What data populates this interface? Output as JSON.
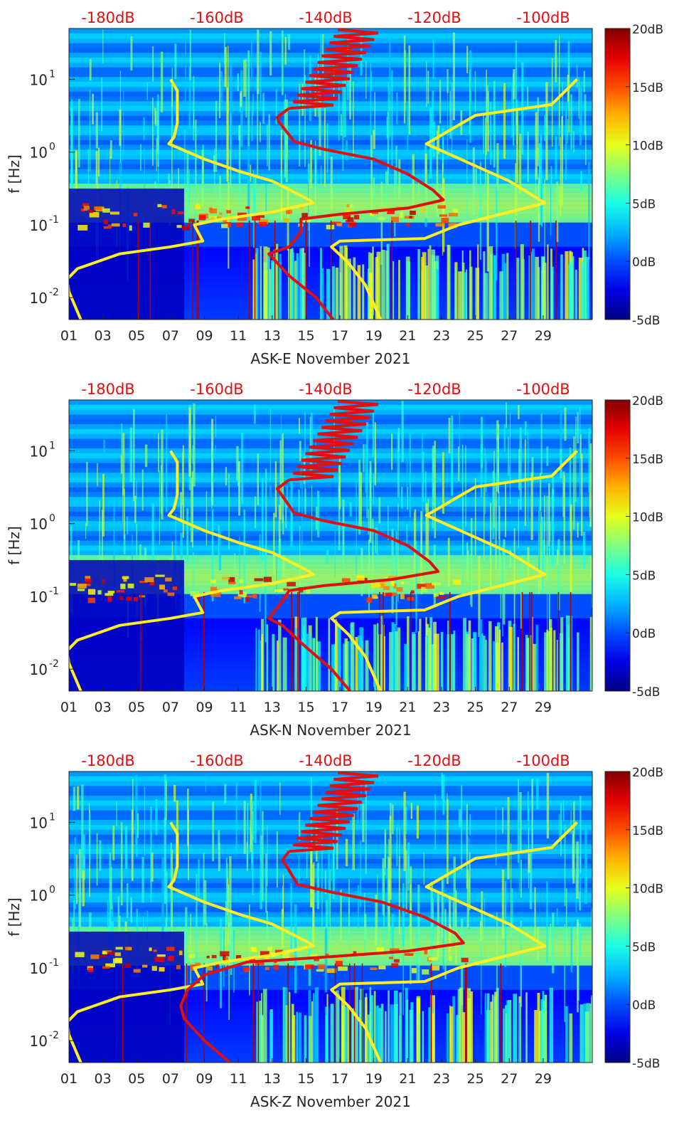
{
  "chart_data": [
    {
      "type": "heatmap",
      "station": "ASK-E",
      "xlabel": "ASK-E November 2021",
      "ylabel": "f [Hz]",
      "x_ticks": [
        "01",
        "03",
        "05",
        "07",
        "09",
        "11",
        "13",
        "15",
        "17",
        "19",
        "21",
        "23",
        "25",
        "27",
        "29"
      ],
      "y_range_hz": [
        0.005,
        50
      ],
      "y_ticks": [
        {
          "value": 0.01,
          "base": "10",
          "exp": "-2"
        },
        {
          "value": 0.1,
          "base": "10",
          "exp": "-1"
        },
        {
          "value": 1,
          "base": "10",
          "exp": "0"
        },
        {
          "value": 10,
          "base": "10",
          "exp": "1"
        }
      ],
      "top_axis_labels": [
        "-180dB",
        "-160dB",
        "-140dB",
        "-120dB",
        "-100dB"
      ],
      "colorbar": {
        "min_db": -5,
        "max_db": 20,
        "tick_labels": [
          "20dB",
          "15dB",
          "10dB",
          "5dB",
          "0dB",
          "-5dB"
        ]
      },
      "noise_models": {
        "low_curve": [
          [
            7,
            10
          ],
          [
            7.4,
            7
          ],
          [
            7.4,
            2.5
          ],
          [
            7.2,
            1.6
          ],
          [
            6.9,
            1.3
          ],
          [
            9,
            0.8
          ],
          [
            11,
            0.55
          ],
          [
            13,
            0.4
          ],
          [
            15.2,
            0.22
          ],
          [
            15.4,
            0.2
          ],
          [
            13,
            0.15
          ],
          [
            10,
            0.12
          ],
          [
            8.4,
            0.1
          ],
          [
            8.9,
            0.06
          ],
          [
            7,
            0.05
          ],
          [
            4,
            0.04
          ],
          [
            1.5,
            0.025
          ],
          [
            0.9,
            0.018
          ],
          [
            1,
            0.012
          ],
          [
            1.7,
            0.005
          ]
        ],
        "high_curve": [
          [
            31,
            10
          ],
          [
            29.5,
            4.5
          ],
          [
            25,
            3.2
          ],
          [
            22.1,
            1.3
          ],
          [
            27,
            0.4
          ],
          [
            29.1,
            0.2
          ],
          [
            26.5,
            0.14
          ],
          [
            24,
            0.1
          ],
          [
            22,
            0.065
          ],
          [
            17,
            0.06
          ],
          [
            16.5,
            0.05
          ],
          [
            17.5,
            0.03
          ],
          [
            18.5,
            0.015
          ],
          [
            19.4,
            0.005
          ]
        ],
        "psd_curve": [
          [
            14,
            4
          ],
          [
            13.3,
            3
          ],
          [
            13.4,
            2.6
          ],
          [
            14.3,
            1.4
          ],
          [
            16,
            1.1
          ],
          [
            19,
            0.8
          ],
          [
            21,
            0.5
          ],
          [
            22.5,
            0.3
          ],
          [
            23.1,
            0.22
          ],
          [
            21,
            0.17
          ],
          [
            17,
            0.14
          ],
          [
            14.7,
            0.12
          ],
          [
            14.7,
            0.08
          ],
          [
            14,
            0.05
          ],
          [
            12.8,
            0.04
          ],
          [
            14,
            0.02
          ],
          [
            15.6,
            0.01
          ],
          [
            16.6,
            0.005
          ]
        ]
      }
    },
    {
      "type": "heatmap",
      "station": "ASK-N",
      "xlabel": "ASK-N November 2021",
      "ylabel": "f [Hz]",
      "x_ticks": [
        "01",
        "03",
        "05",
        "07",
        "09",
        "11",
        "13",
        "15",
        "17",
        "19",
        "21",
        "23",
        "25",
        "27",
        "29"
      ],
      "y_range_hz": [
        0.005,
        50
      ],
      "y_ticks": [
        {
          "value": 0.01,
          "base": "10",
          "exp": "-2"
        },
        {
          "value": 0.1,
          "base": "10",
          "exp": "-1"
        },
        {
          "value": 1,
          "base": "10",
          "exp": "0"
        },
        {
          "value": 10,
          "base": "10",
          "exp": "1"
        }
      ],
      "top_axis_labels": [
        "-180dB",
        "-160dB",
        "-140dB",
        "-120dB",
        "-100dB"
      ],
      "colorbar": {
        "min_db": -5,
        "max_db": 20,
        "tick_labels": [
          "20dB",
          "15dB",
          "10dB",
          "5dB",
          "0dB",
          "-5dB"
        ]
      },
      "noise_models": {
        "low_curve": [
          [
            7,
            10
          ],
          [
            7.4,
            7
          ],
          [
            7.4,
            2.5
          ],
          [
            7.2,
            1.6
          ],
          [
            6.9,
            1.3
          ],
          [
            9,
            0.8
          ],
          [
            11,
            0.55
          ],
          [
            13,
            0.4
          ],
          [
            15.2,
            0.22
          ],
          [
            15.4,
            0.2
          ],
          [
            13,
            0.15
          ],
          [
            10,
            0.12
          ],
          [
            8.4,
            0.1
          ],
          [
            8.9,
            0.06
          ],
          [
            7,
            0.05
          ],
          [
            4,
            0.04
          ],
          [
            1.5,
            0.025
          ],
          [
            0.9,
            0.018
          ],
          [
            1,
            0.012
          ],
          [
            1.7,
            0.005
          ]
        ],
        "high_curve": [
          [
            31,
            10
          ],
          [
            29.5,
            4.5
          ],
          [
            25,
            3.2
          ],
          [
            22.1,
            1.3
          ],
          [
            27,
            0.4
          ],
          [
            29.1,
            0.2
          ],
          [
            26.5,
            0.14
          ],
          [
            24,
            0.1
          ],
          [
            22,
            0.065
          ],
          [
            17,
            0.06
          ],
          [
            16.5,
            0.05
          ],
          [
            17.5,
            0.03
          ],
          [
            18.5,
            0.015
          ],
          [
            19.4,
            0.005
          ]
        ],
        "psd_curve": [
          [
            14,
            4
          ],
          [
            13.3,
            3
          ],
          [
            13.5,
            2.6
          ],
          [
            14.3,
            1.4
          ],
          [
            16,
            1.1
          ],
          [
            19,
            0.8
          ],
          [
            21,
            0.5
          ],
          [
            22.3,
            0.3
          ],
          [
            22.8,
            0.22
          ],
          [
            20,
            0.17
          ],
          [
            16,
            0.14
          ],
          [
            14,
            0.12
          ],
          [
            13.5,
            0.08
          ],
          [
            12.8,
            0.05
          ],
          [
            13.6,
            0.04
          ],
          [
            15,
            0.02
          ],
          [
            16.5,
            0.01
          ],
          [
            17.6,
            0.005
          ]
        ]
      }
    },
    {
      "type": "heatmap",
      "station": "ASK-Z",
      "xlabel": "ASK-Z November 2021",
      "ylabel": "f [Hz]",
      "x_ticks": [
        "01",
        "03",
        "05",
        "07",
        "09",
        "11",
        "13",
        "15",
        "17",
        "19",
        "21",
        "23",
        "25",
        "27",
        "29"
      ],
      "y_range_hz": [
        0.005,
        50
      ],
      "y_ticks": [
        {
          "value": 0.01,
          "base": "10",
          "exp": "-2"
        },
        {
          "value": 0.1,
          "base": "10",
          "exp": "-1"
        },
        {
          "value": 1,
          "base": "10",
          "exp": "0"
        },
        {
          "value": 10,
          "base": "10",
          "exp": "1"
        }
      ],
      "top_axis_labels": [
        "-180dB",
        "-160dB",
        "-140dB",
        "-120dB",
        "-100dB"
      ],
      "colorbar": {
        "min_db": -5,
        "max_db": 20,
        "tick_labels": [
          "20dB",
          "15dB",
          "10dB",
          "5dB",
          "0dB",
          "-5dB"
        ]
      },
      "noise_models": {
        "low_curve": [
          [
            7,
            10
          ],
          [
            7.4,
            7
          ],
          [
            7.4,
            2.5
          ],
          [
            7.2,
            1.6
          ],
          [
            6.9,
            1.3
          ],
          [
            9,
            0.8
          ],
          [
            11,
            0.55
          ],
          [
            13,
            0.4
          ],
          [
            15.2,
            0.22
          ],
          [
            15.4,
            0.2
          ],
          [
            13,
            0.15
          ],
          [
            10,
            0.12
          ],
          [
            8.4,
            0.1
          ],
          [
            8.9,
            0.06
          ],
          [
            7,
            0.05
          ],
          [
            4,
            0.04
          ],
          [
            1.5,
            0.025
          ],
          [
            0.9,
            0.018
          ],
          [
            1,
            0.012
          ],
          [
            1.7,
            0.005
          ]
        ],
        "high_curve": [
          [
            31,
            10
          ],
          [
            29.5,
            4.5
          ],
          [
            25,
            3.2
          ],
          [
            22.1,
            1.3
          ],
          [
            27,
            0.4
          ],
          [
            29.1,
            0.2
          ],
          [
            26.5,
            0.14
          ],
          [
            24,
            0.1
          ],
          [
            22,
            0.065
          ],
          [
            17,
            0.06
          ],
          [
            16.5,
            0.05
          ],
          [
            17.5,
            0.03
          ],
          [
            18.5,
            0.015
          ],
          [
            19.4,
            0.005
          ]
        ],
        "psd_curve": [
          [
            14,
            4
          ],
          [
            13.6,
            3
          ],
          [
            13.8,
            2.6
          ],
          [
            14.5,
            1.4
          ],
          [
            16.5,
            1.1
          ],
          [
            19.5,
            0.8
          ],
          [
            22,
            0.5
          ],
          [
            23.8,
            0.3
          ],
          [
            24.3,
            0.22
          ],
          [
            21,
            0.17
          ],
          [
            16,
            0.14
          ],
          [
            11.5,
            0.12
          ],
          [
            9,
            0.08
          ],
          [
            8,
            0.05
          ],
          [
            7.6,
            0.03
          ],
          [
            7.8,
            0.02
          ],
          [
            9,
            0.01
          ],
          [
            10.5,
            0.005
          ]
        ]
      }
    }
  ]
}
